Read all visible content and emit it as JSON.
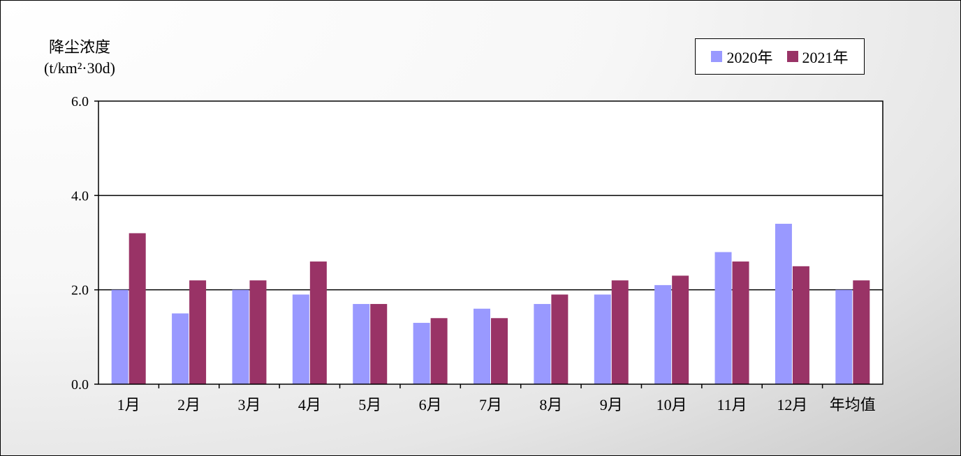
{
  "chart_data": {
    "type": "bar",
    "ylabel_line1": "降尘浓度",
    "ylabel_line2": "(t/km²·30d)",
    "categories": [
      "1月",
      "2月",
      "3月",
      "4月",
      "5月",
      "6月",
      "7月",
      "8月",
      "9月",
      "10月",
      "11月",
      "12月",
      "年均值"
    ],
    "series": [
      {
        "name": "2020年",
        "color": "#9999ff",
        "values": [
          2.0,
          1.5,
          2.0,
          1.9,
          1.7,
          1.3,
          1.6,
          1.7,
          1.9,
          2.1,
          2.8,
          3.4,
          2.0
        ]
      },
      {
        "name": "2021年",
        "color": "#993366",
        "values": [
          3.2,
          2.2,
          2.2,
          2.6,
          1.7,
          1.4,
          1.4,
          1.9,
          2.2,
          2.3,
          2.6,
          2.5,
          2.2
        ]
      }
    ],
    "ylim": [
      0,
      6
    ],
    "yticks": [
      "0.0",
      "2.0",
      "4.0",
      "6.0"
    ],
    "grid": true,
    "legend_position": "top-right"
  }
}
